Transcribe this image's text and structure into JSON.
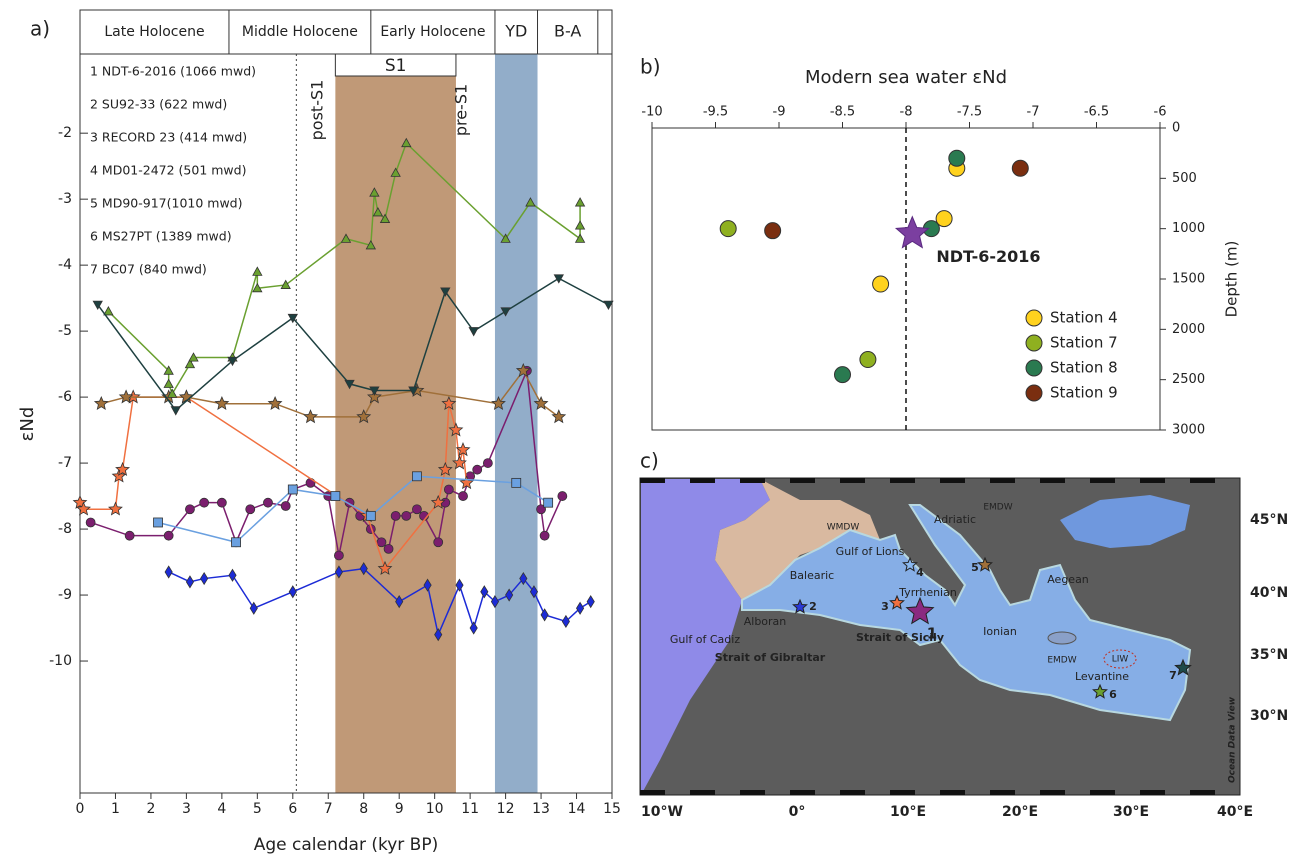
{
  "chart_data": [
    {
      "type": "line",
      "panel_label": "a)",
      "xlabel": "Age calendar (kyr BP)",
      "ylabel": "εNd",
      "xlim": [
        0,
        15
      ],
      "ylim": [
        -12,
        -0.8
      ],
      "xticks": [
        0,
        1,
        2,
        3,
        4,
        5,
        6,
        7,
        8,
        9,
        10,
        11,
        12,
        13,
        14,
        15
      ],
      "yticks": [
        -10,
        -9,
        -8,
        -7,
        -6,
        -5,
        -4,
        -3,
        -2
      ],
      "periods": [
        {
          "label": "Late Holocene",
          "start": 0,
          "end": 4.2
        },
        {
          "label": "Middle Holocene",
          "start": 4.2,
          "end": 8.2
        },
        {
          "label": "Early Holocene",
          "start": 8.2,
          "end": 11.7
        },
        {
          "label": "YD",
          "start": 11.7,
          "end": 12.9
        },
        {
          "label": "B-A",
          "start": 12.9,
          "end": 14.6
        }
      ],
      "intervals": [
        {
          "label": "S1",
          "start": 7.2,
          "end": 10.6,
          "color": "#b5875f"
        },
        {
          "start": 11.7,
          "end": 12.9,
          "color": "#7f9fc0"
        }
      ],
      "boundary_line": 6.1,
      "annotations": [
        "post-S1",
        "pre-S1"
      ],
      "series": [
        {
          "name": "1 NDT-6-2016 (1066 mwd)",
          "color": "#7b1e6e",
          "marker": "circle",
          "x": [
            0.3,
            1.4,
            2.5,
            3.1,
            3.5,
            4,
            4.4,
            4.8,
            5.3,
            5.8,
            6,
            6.5,
            7,
            7.3,
            7.6,
            7.9,
            8.2,
            8.5,
            8.7,
            8.9,
            9.2,
            9.5,
            9.7,
            10.1,
            10.3,
            10.4,
            10.8,
            11,
            11.2,
            11.5,
            12.6,
            13,
            13.1,
            13.6
          ],
          "values": [
            -7.9,
            -8.1,
            -8.1,
            -7.7,
            -7.6,
            -7.6,
            -8.2,
            -7.7,
            -7.6,
            -7.65,
            -7.4,
            -7.3,
            -7.5,
            -8.4,
            -7.6,
            -7.8,
            -8,
            -8.2,
            -8.3,
            -7.8,
            -7.8,
            -7.7,
            -7.8,
            -8.2,
            -7.6,
            -7.4,
            -7.5,
            -7.2,
            -7.1,
            -7,
            -5.6,
            -7.7,
            -8.1,
            -7.5
          ]
        },
        {
          "name": "2 SU92-33 (622 mwd)",
          "color": "#1c2bd6",
          "marker": "diamond",
          "x": [
            2.5,
            3.1,
            3.5,
            4.3,
            4.9,
            6,
            7.3,
            8,
            9,
            9.8,
            10.1,
            10.7,
            11.1,
            11.4,
            11.7,
            12.1,
            12.5,
            12.8,
            13.1,
            13.7,
            14.1,
            14.4
          ],
          "values": [
            -8.65,
            -8.8,
            -8.75,
            -8.7,
            -9.2,
            -8.95,
            -8.65,
            -8.6,
            -9.1,
            -8.85,
            -9.6,
            -8.85,
            -9.5,
            -8.95,
            -9.1,
            -9,
            -8.75,
            -8.95,
            -9.3,
            -9.4,
            -9.2,
            -9.1
          ]
        },
        {
          "name": "3 RECORD 23 (414 mwd)",
          "color": "#f07040",
          "marker": "star",
          "x": [
            0,
            0.1,
            1,
            1.1,
            1.2,
            1.5,
            3,
            8.1,
            8.6,
            10.1,
            10.3,
            10.4,
            10.6,
            10.7,
            10.8,
            10.9
          ],
          "values": [
            -7.6,
            -7.7,
            -7.7,
            -7.2,
            -7.1,
            -6,
            -6,
            -7.8,
            -8.6,
            -7.6,
            -7.1,
            -6.1,
            -6.5,
            -7,
            -6.8,
            -7.3
          ]
        },
        {
          "name": "4 MD01-2472 (501 mwd)",
          "color": "#6aa0e0",
          "marker": "square",
          "x": [
            2.2,
            4.4,
            6,
            7.2,
            8.2,
            9.5,
            12.3,
            13.2
          ],
          "values": [
            -7.9,
            -8.2,
            -7.4,
            -7.5,
            -7.8,
            -7.2,
            -7.3,
            -7.6
          ]
        },
        {
          "name": "5 MD90-917(1010 mwd)",
          "color": "#a0703a",
          "marker": "star",
          "x": [
            0.6,
            1.3,
            2.5,
            3,
            4,
            5.5,
            6.5,
            8,
            8.3,
            9.5,
            11.8,
            12.5,
            13,
            13.5
          ],
          "values": [
            -6.1,
            -6,
            -6,
            -6,
            -6.1,
            -6.1,
            -6.3,
            -6.3,
            -6,
            -5.9,
            -6.1,
            -5.6,
            -6.1,
            -6.3
          ]
        },
        {
          "name": "6 MS27PT (1389 mwd)",
          "color": "#6aa030",
          "marker": "triangle",
          "x": [
            0.8,
            2.5,
            2.5,
            2.6,
            3.1,
            3.2,
            4.3,
            5,
            5,
            5.8,
            7.5,
            8.2,
            8.3,
            8.4,
            8.6,
            8.9,
            9.2,
            12,
            12.7,
            14.1,
            14.1,
            14.1
          ],
          "values": [
            -4.7,
            -5.6,
            -5.8,
            -5.95,
            -5.5,
            -5.4,
            -5.4,
            -4.1,
            -4.35,
            -4.3,
            -3.6,
            -3.7,
            -2.9,
            -3.2,
            -3.3,
            -2.6,
            -2.15,
            -3.6,
            -3.05,
            -3.6,
            -3.4,
            -3.05
          ]
        },
        {
          "name": "7 BC07 (840 mwd)",
          "color": "#1e4040",
          "marker": "triangle-down",
          "x": [
            0.5,
            2.7,
            4.3,
            6,
            7.6,
            8.3,
            9.4,
            10.3,
            11.1,
            12,
            13.5,
            14.9
          ],
          "values": [
            -4.6,
            -6.2,
            -5.45,
            -4.8,
            -5.8,
            -5.9,
            -5.9,
            -4.4,
            -5,
            -4.7,
            -4.2,
            -4.6
          ]
        }
      ]
    },
    {
      "type": "scatter",
      "panel_label": "b)",
      "title": "Modern sea water εNd",
      "ylabel": "Depth (m)",
      "xlim": [
        -10,
        -6
      ],
      "xticks": [
        -10,
        -9.5,
        -9,
        -8.5,
        -8,
        -7.5,
        -7,
        -6.5,
        -6
      ],
      "ylim": [
        3000,
        0
      ],
      "yticks": [
        0,
        500,
        1000,
        1500,
        2000,
        2500,
        3000
      ],
      "reference_line": -8,
      "series": [
        {
          "name": "Station 4",
          "color": "#ffd21e",
          "x": [
            -7.6,
            -7.7,
            -8.2
          ],
          "values": [
            400,
            900,
            1550
          ]
        },
        {
          "name": "Station 7",
          "color": "#8fb020",
          "x": [
            -9.4,
            -8.3
          ],
          "values": [
            1000,
            2300
          ]
        },
        {
          "name": "Station 8",
          "color": "#2a7a50",
          "x": [
            -7.6,
            -7.8,
            -8.5
          ],
          "values": [
            300,
            1000,
            2450
          ]
        },
        {
          "name": "Station 9",
          "color": "#7a2e10",
          "x": [
            -9.05,
            -7.1
          ],
          "values": [
            1020,
            400
          ]
        }
      ],
      "highlight": {
        "name": "NDT-6-2016",
        "x": -7.95,
        "value": 1050,
        "color": "#7b3fa0"
      }
    }
  ],
  "map": {
    "panel_label": "c)",
    "place_labels": [
      "Gulf of Cadiz",
      "WMDW",
      "Gulf of Lions",
      "Balearic",
      "Tyrrhenian",
      "Alboran",
      "Strait of Gibraltar",
      "Strait of Sicily",
      "Ionian",
      "Adriatic",
      "EMDW",
      "Aegean",
      "EMDW",
      "LIW",
      "Levantine"
    ],
    "lat_labels": [
      "45°N",
      "40°N",
      "35°N",
      "30°N"
    ],
    "lon_labels": [
      "10°W",
      "0°",
      "10°E",
      "20°E",
      "30°E",
      "40°E"
    ],
    "site_labels": [
      "1",
      "2",
      "3",
      "4",
      "5",
      "6",
      "7"
    ],
    "credit": "Ocean Data View"
  }
}
